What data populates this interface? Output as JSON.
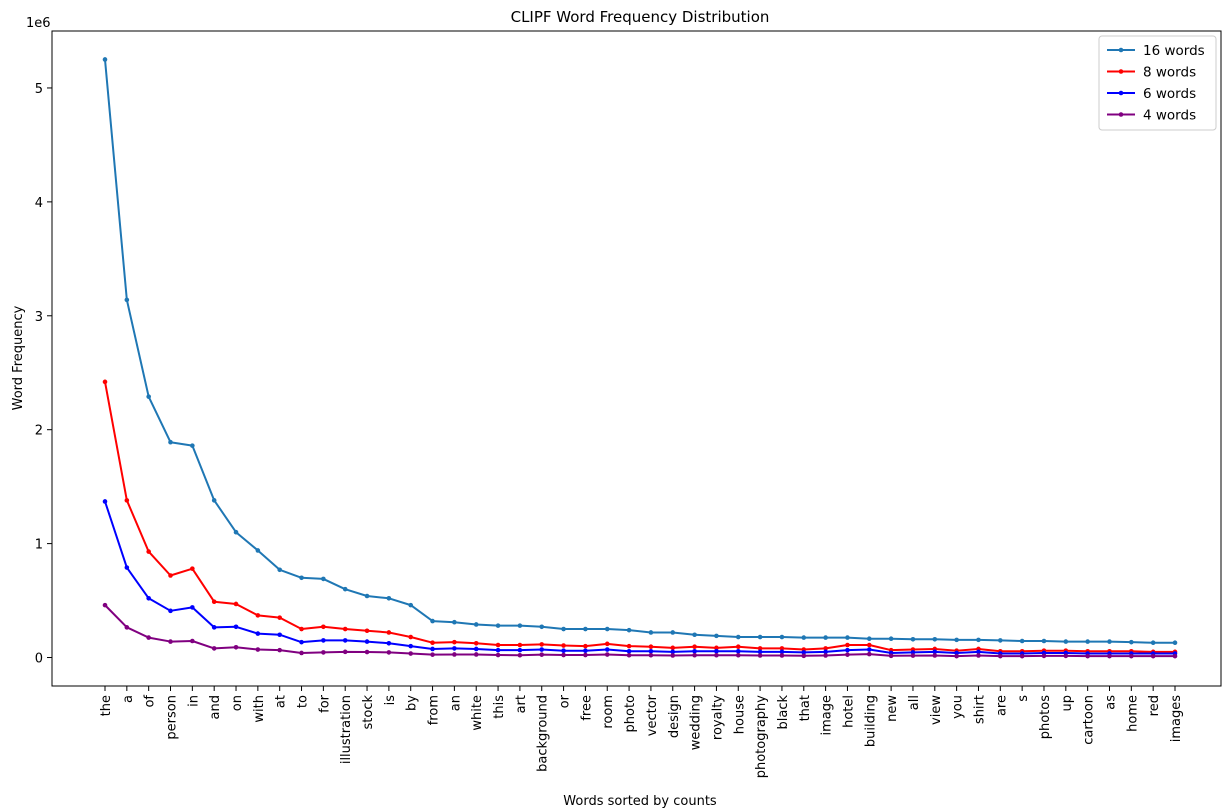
{
  "chart_data": {
    "type": "line",
    "title": "CLIPF Word Frequency Distribution",
    "xlabel": "Words sorted by counts",
    "ylabel": "Word Frequency",
    "y_offset_text": "1e6",
    "ylim": [
      -250000,
      5500000
    ],
    "yticks": [
      0,
      1000000,
      2000000,
      3000000,
      4000000,
      5000000
    ],
    "ytick_labels": [
      "0",
      "1",
      "2",
      "3",
      "4",
      "5"
    ],
    "legend_position": "top-right",
    "grid": false,
    "categories": [
      "the",
      "a",
      "of",
      "person",
      "in",
      "and",
      "on",
      "with",
      "at",
      "to",
      "for",
      "illustration",
      "stock",
      "is",
      "by",
      "from",
      "an",
      "white",
      "this",
      "art",
      "background",
      "or",
      "free",
      "room",
      "photo",
      "vector",
      "design",
      "wedding",
      "royalty",
      "house",
      "photography",
      "black",
      "that",
      "image",
      "hotel",
      "building",
      "new",
      "all",
      "view",
      "you",
      "shirt",
      "are",
      "s",
      "photos",
      "up",
      "cartoon",
      "as",
      "home",
      "red",
      "images"
    ],
    "series": [
      {
        "name": "16 words",
        "color": "#1f77b4",
        "values": [
          5250000,
          3140000,
          2290000,
          1890000,
          1860000,
          1380000,
          1100000,
          940000,
          770000,
          700000,
          690000,
          600000,
          540000,
          520000,
          460000,
          320000,
          310000,
          290000,
          280000,
          280000,
          270000,
          250000,
          250000,
          250000,
          240000,
          220000,
          220000,
          200000,
          190000,
          180000,
          180000,
          180000,
          175000,
          175000,
          175000,
          165000,
          165000,
          160000,
          160000,
          155000,
          155000,
          150000,
          145000,
          145000,
          140000,
          140000,
          140000,
          135000,
          130000,
          130000
        ]
      },
      {
        "name": "8 words",
        "color": "#ff0000",
        "values": [
          2420000,
          1380000,
          930000,
          720000,
          780000,
          490000,
          470000,
          370000,
          350000,
          250000,
          270000,
          250000,
          235000,
          220000,
          180000,
          130000,
          135000,
          125000,
          110000,
          110000,
          115000,
          105000,
          100000,
          120000,
          100000,
          95000,
          85000,
          95000,
          85000,
          95000,
          80000,
          80000,
          70000,
          80000,
          110000,
          110000,
          65000,
          70000,
          75000,
          60000,
          75000,
          55000,
          55000,
          60000,
          60000,
          55000,
          55000,
          55000,
          50000,
          50000
        ]
      },
      {
        "name": "6 words",
        "color": "#0000ff",
        "values": [
          1370000,
          790000,
          520000,
          410000,
          440000,
          265000,
          270000,
          210000,
          200000,
          135000,
          150000,
          150000,
          140000,
          125000,
          100000,
          75000,
          80000,
          75000,
          65000,
          65000,
          70000,
          60000,
          60000,
          70000,
          55000,
          55000,
          50000,
          55000,
          55000,
          55000,
          50000,
          50000,
          45000,
          50000,
          65000,
          70000,
          40000,
          45000,
          50000,
          40000,
          50000,
          35000,
          35000,
          40000,
          40000,
          35000,
          35000,
          35000,
          35000,
          35000
        ]
      },
      {
        "name": "4 words",
        "color": "#800080",
        "values": [
          460000,
          265000,
          175000,
          140000,
          145000,
          80000,
          90000,
          70000,
          65000,
          40000,
          45000,
          50000,
          48000,
          45000,
          35000,
          25000,
          27000,
          27000,
          22000,
          20000,
          25000,
          22000,
          22000,
          26000,
          20000,
          20000,
          18000,
          20000,
          20000,
          20000,
          18000,
          18000,
          15000,
          18000,
          25000,
          30000,
          15000,
          17000,
          18000,
          12000,
          18000,
          12000,
          12000,
          14000,
          14000,
          12000,
          12000,
          12000,
          12000,
          12000
        ]
      }
    ]
  }
}
